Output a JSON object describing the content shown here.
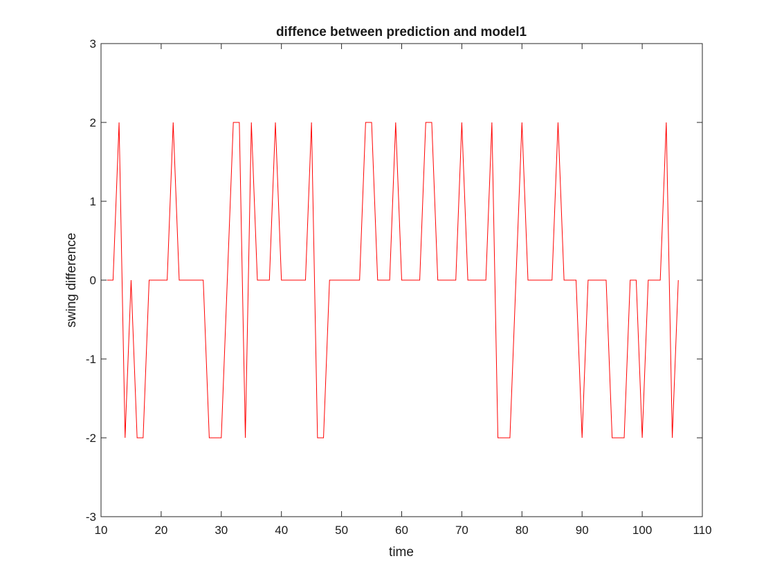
{
  "chart_data": {
    "type": "line",
    "title": "diffence between prediction and model1",
    "xlabel": "time",
    "ylabel": "swing difference",
    "xlim": [
      10,
      110
    ],
    "ylim": [
      -3,
      3
    ],
    "xticks": [
      10,
      20,
      30,
      40,
      50,
      60,
      70,
      80,
      90,
      100,
      110
    ],
    "yticks": [
      -3,
      -2,
      -1,
      0,
      1,
      2,
      3
    ],
    "grid": false,
    "box": true,
    "series": [
      {
        "color": "#ff0000",
        "x": [
          11,
          12,
          13,
          14,
          15,
          16,
          17,
          18,
          19,
          20,
          21,
          22,
          23,
          24,
          25,
          26,
          27,
          28,
          29,
          30,
          31,
          32,
          33,
          34,
          35,
          36,
          37,
          38,
          39,
          40,
          41,
          42,
          43,
          44,
          45,
          46,
          47,
          48,
          49,
          50,
          51,
          52,
          53,
          54,
          55,
          56,
          57,
          58,
          59,
          60,
          61,
          62,
          63,
          64,
          65,
          66,
          67,
          68,
          69,
          70,
          71,
          72,
          73,
          74,
          75,
          76,
          77,
          78,
          79,
          80,
          81,
          82,
          83,
          84,
          85,
          86,
          87,
          88,
          89,
          90,
          91,
          92,
          93,
          94,
          95,
          96,
          97,
          98,
          99,
          100,
          101,
          102,
          103,
          104,
          105,
          106
        ],
        "y": [
          0,
          0,
          2,
          -2,
          0,
          -2,
          -2,
          0,
          0,
          0,
          0,
          2,
          0,
          0,
          0,
          0,
          0,
          -2,
          -2,
          -2,
          0,
          2,
          2,
          -2,
          2,
          0,
          0,
          0,
          2,
          0,
          0,
          0,
          0,
          0,
          2,
          -2,
          -2,
          0,
          0,
          0,
          0,
          0,
          0,
          2,
          2,
          0,
          0,
          0,
          2,
          0,
          0,
          0,
          0,
          2,
          2,
          0,
          0,
          0,
          0,
          2,
          0,
          0,
          0,
          0,
          2,
          -2,
          -2,
          -2,
          0,
          2,
          0,
          0,
          0,
          0,
          0,
          2,
          0,
          0,
          0,
          -2,
          0,
          0,
          0,
          0,
          -2,
          -2,
          -2,
          0,
          0,
          -2,
          0,
          0,
          0,
          2,
          -2,
          0
        ]
      }
    ]
  }
}
